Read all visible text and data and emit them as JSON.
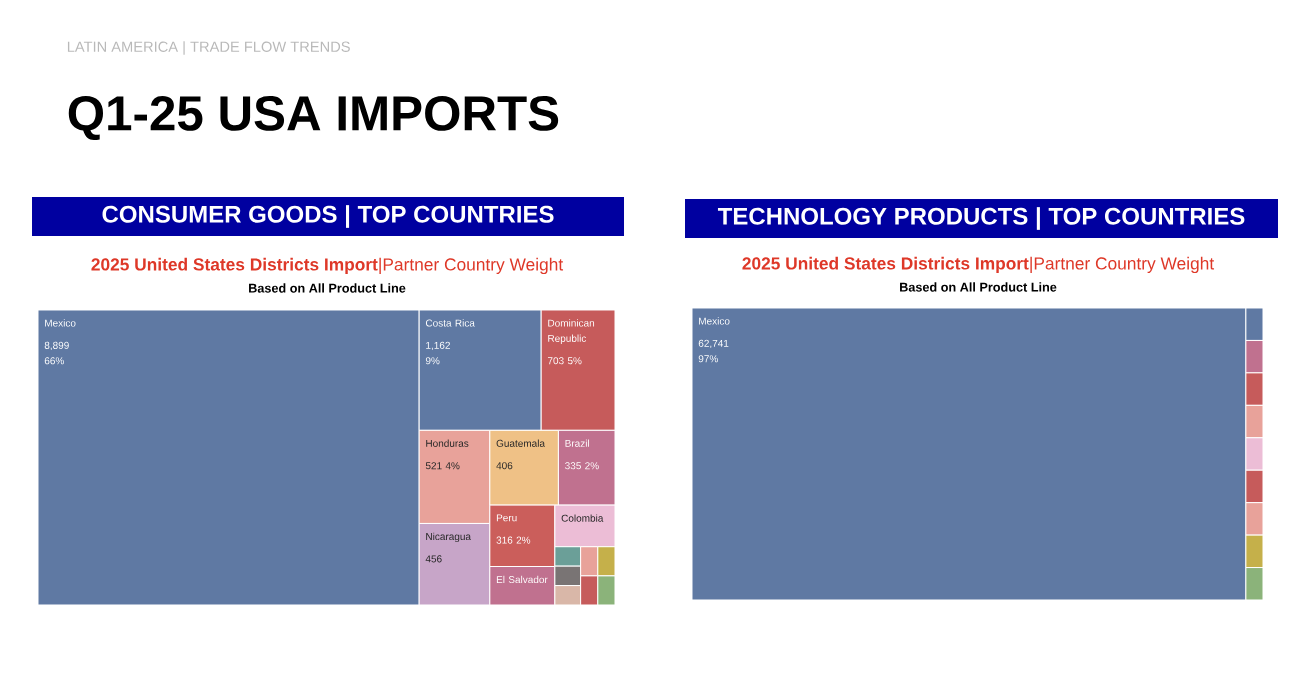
{
  "chart_data": [
    {
      "type": "other",
      "title": "Q1-25 USA IMPORTS",
      "subtitle": "LATIN AMERICA | TRADE FLOW TRENDS"
    },
    {
      "type": "other",
      "title": "CONSUMER GOODS | TOP COUNTRIES",
      "subtitle": "**2025 United States Districts Import**|Partner Country Weight",
      "annotations": [
        "Based on All Product Line"
      ],
      "categories": [
        "Mexico",
        "Costa Rica",
        "Dominican Republic",
        "Honduras",
        "Nicaragua",
        "Guatemala",
        "Brazil",
        "Peru",
        "El Salvador",
        "Colombia",
        null,
        null,
        null,
        null,
        null,
        null,
        null
      ],
      "values": [
        8899,
        1162,
        703,
        521,
        456,
        406,
        335,
        316,
        null,
        null,
        null,
        null,
        null,
        null,
        null,
        null,
        null
      ],
      "value_labels": [
        "8,899 66%",
        "1,162 9%",
        "703 5%",
        "521 4%",
        "456",
        "406",
        "335 2%",
        "316 2%",
        null,
        null,
        null,
        null,
        null,
        null,
        null,
        null,
        null
      ],
      "colors": [
        "#5f79a3",
        "#5f79a3",
        "#c65b5b",
        "#e8a29a",
        "#c7a5c8",
        "#efc186",
        "#c0718f",
        "#cb5e5b",
        "#c0718f",
        "#ecbdd6",
        "#6b9f98",
        "#797474",
        "#d9b7a8",
        "#e8a29a",
        "#c5b04a",
        "#c65b5b",
        "#8bb37a"
      ]
    },
    {
      "type": "other",
      "title": "TECHNOLOGY PRODUCTS | TOP COUNTRIES",
      "subtitle": "**2025 United States Districts Import**|Partner Country Weight",
      "annotations": [
        "Based on All Product Line"
      ],
      "categories": [
        "Mexico",
        null,
        null,
        null,
        null,
        null,
        null,
        null,
        null,
        null
      ],
      "values": [
        62741,
        null,
        null,
        null,
        null,
        null,
        null,
        null,
        null,
        null
      ],
      "value_labels": [
        "62,741 97%",
        null,
        null,
        null,
        null,
        null,
        null,
        null,
        null,
        null
      ],
      "colors": [
        "#5f79a3",
        "#5f79a3",
        "#c0718f",
        "#c65b5b",
        "#e8a29a",
        "#ecbdd6",
        "#c65b5b",
        "#e8a29a",
        "#c5b04a",
        "#8bb37a"
      ]
    }
  ]
}
